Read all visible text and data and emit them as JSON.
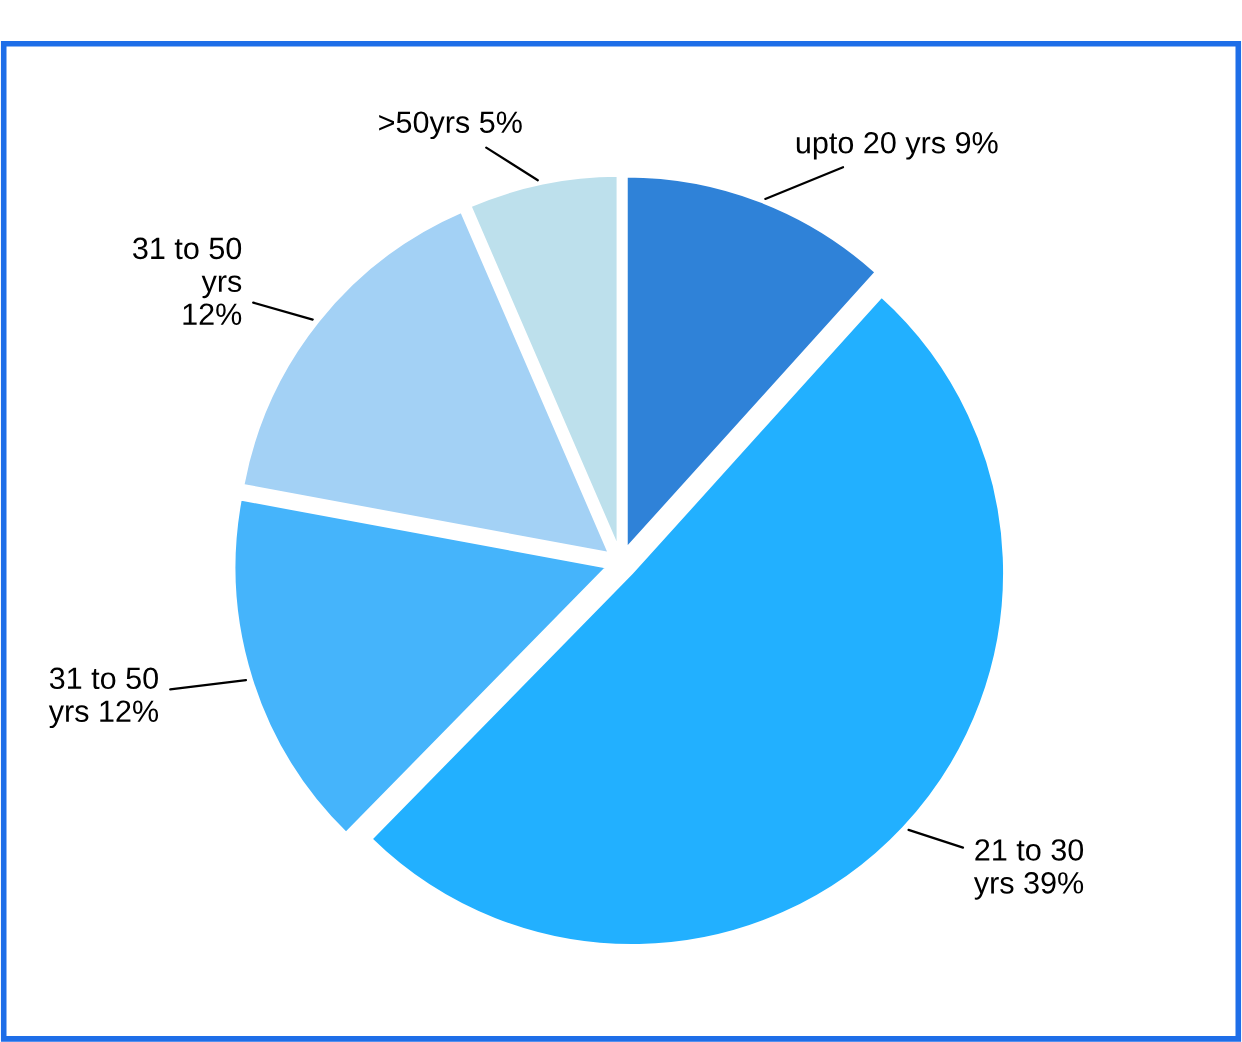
{
  "chart_data": {
    "type": "pie",
    "categories": [
      "upto 20 yrs 9%",
      "21 to 30\nyrs 39%",
      "31 to 50\nyrs 12%",
      "31 to 50\nyrs\n12%",
      ">50yrs 5%"
    ],
    "values": [
      9,
      39,
      12,
      12,
      5
    ],
    "colors": [
      "#2f82d8",
      "#22b0ff",
      "#45b4fb",
      "#a3d1f5",
      "#bde0ec"
    ],
    "legend": false
  }
}
